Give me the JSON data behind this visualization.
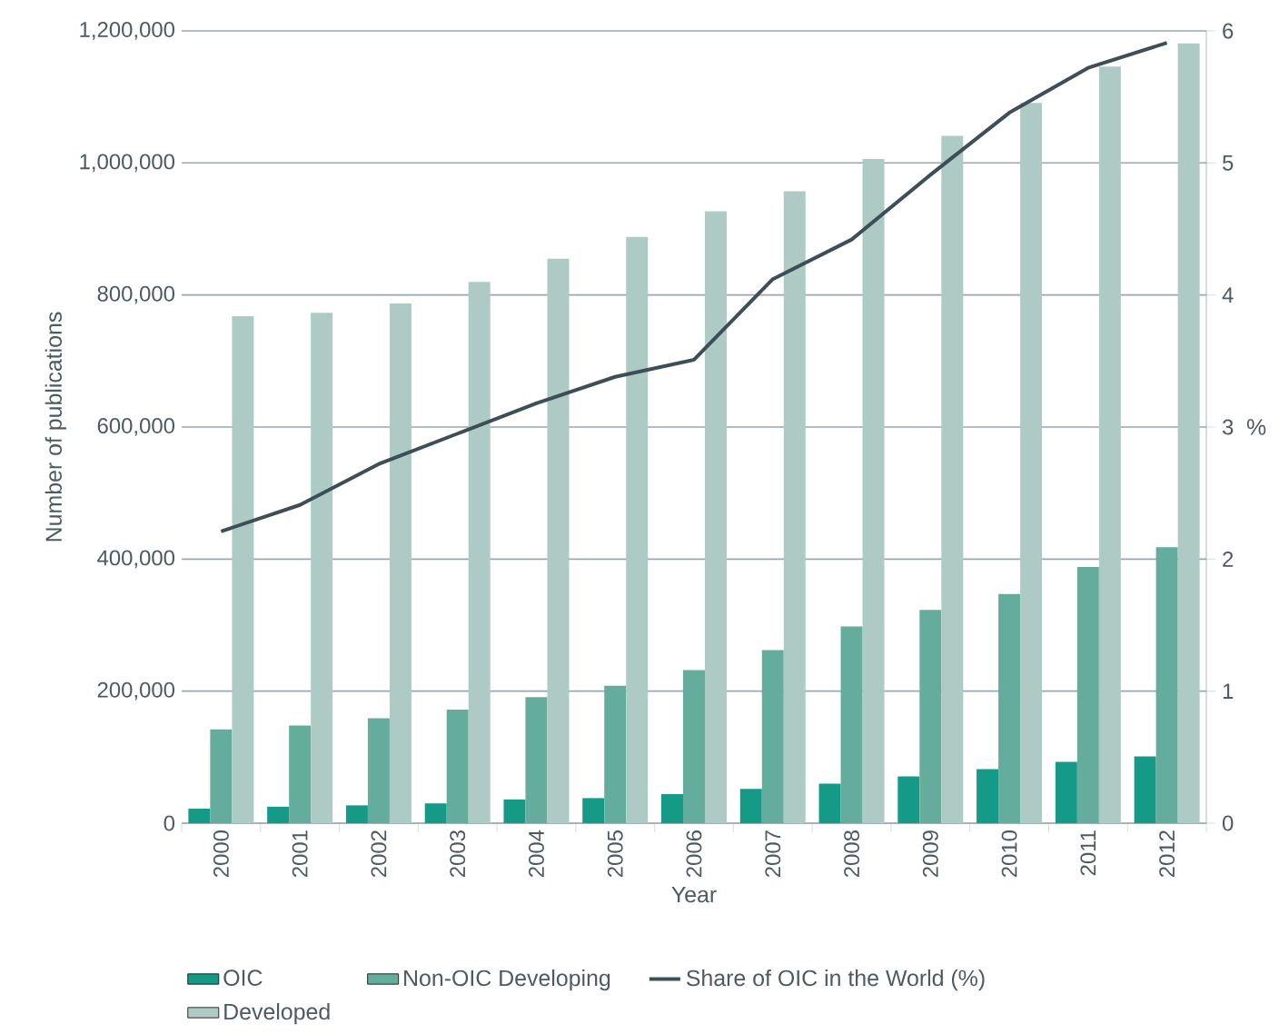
{
  "chart_data": {
    "type": "bar",
    "xlabel": "Year",
    "ylabel": "Number of publications",
    "y2label": "%",
    "categories": [
      "2000",
      "2001",
      "2002",
      "2003",
      "2004",
      "2005",
      "2006",
      "2007",
      "2008",
      "2009",
      "2010",
      "2011",
      "2012"
    ],
    "series": [
      {
        "name": "OIC",
        "color": "#159a88",
        "values": [
          22000,
          25000,
          27000,
          30000,
          36000,
          38000,
          44000,
          52000,
          60000,
          71000,
          82000,
          93000,
          101000
        ]
      },
      {
        "name": "Non-OIC Developing",
        "color": "#64ac9c",
        "values": [
          142000,
          148000,
          159000,
          172000,
          191000,
          208000,
          232000,
          262000,
          298000,
          323000,
          347000,
          388000,
          418000
        ]
      },
      {
        "name": "Share of OIC in the World (%)",
        "type": "line",
        "axis": "y2",
        "color": "#3d4e58",
        "values": [
          2.21,
          2.41,
          2.72,
          2.95,
          3.18,
          3.38,
          3.51,
          4.12,
          4.42,
          4.91,
          5.38,
          5.72,
          5.91
        ]
      },
      {
        "name": "Developed",
        "color": "#adcbc4",
        "values": [
          768000,
          773000,
          787000,
          820000,
          855000,
          888000,
          927000,
          957000,
          1006000,
          1041000,
          1091000,
          1146000,
          1181000
        ]
      }
    ],
    "ylim": [
      0,
      1200000
    ],
    "yticks": [
      0,
      {
        "value": 200000,
        "label": "200,000"
      },
      {
        "value": 400000,
        "label": "400,000"
      },
      {
        "value": 600000,
        "label": "600,000"
      },
      {
        "value": 800000,
        "label": "800,000"
      },
      {
        "value": 1000000,
        "label": "1,000,000"
      },
      {
        "value": 1200000,
        "label": "1,200,000"
      }
    ],
    "y2lim": [
      0,
      6
    ],
    "y2ticks": [
      0,
      1,
      2,
      3,
      4,
      5,
      6
    ],
    "grid": "y",
    "legend": "bottom"
  }
}
